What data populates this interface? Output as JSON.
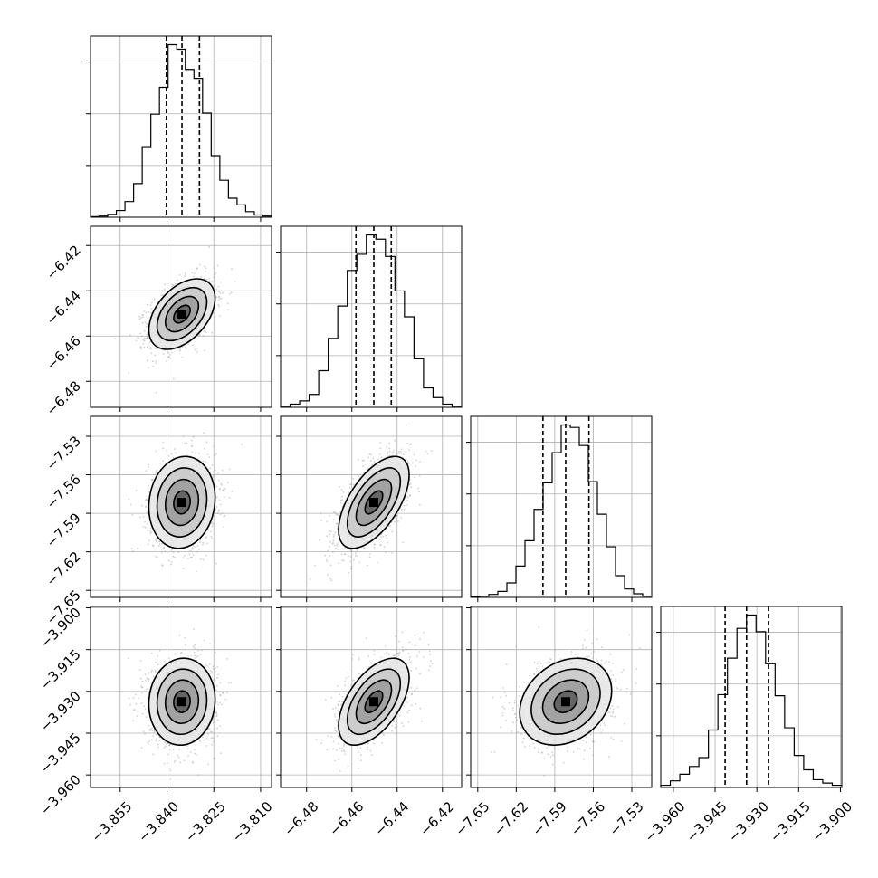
{
  "chart_data": {
    "type": "corner",
    "grid": true,
    "axes_frame_color": "#000000",
    "grid_color": "#b0b0b0",
    "variables": [
      {
        "ticks": [
          "−3.855",
          "−3.840",
          "−3.825",
          "−3.810"
        ],
        "tick_values": [
          -3.855,
          -3.84,
          -3.825,
          -3.81
        ],
        "range": [
          -3.8645,
          -3.8065
        ],
        "quantiles": [
          -3.8402,
          -3.8352,
          -3.8296
        ],
        "histogram": [
          0.5,
          1,
          2.5,
          6,
          14,
          30,
          63,
          92,
          116,
          154,
          150,
          132,
          124,
          93,
          55,
          33,
          17,
          11,
          5,
          2,
          1
        ]
      },
      {
        "ticks": [
          "−6.48",
          "−6.46",
          "−6.44",
          "−6.42"
        ],
        "tick_values": [
          -6.48,
          -6.46,
          -6.44,
          -6.42
        ],
        "range": [
          -6.4915,
          -6.4115
        ],
        "quantiles": [
          -6.4582,
          -6.4503,
          -6.4426
        ],
        "histogram": [
          1,
          3,
          6,
          12,
          34,
          64,
          94,
          127,
          142,
          160,
          156,
          140,
          108,
          84,
          45,
          18,
          9,
          3,
          1
        ]
      },
      {
        "ticks": [
          "−7.65",
          "−7.62",
          "−7.59",
          "−7.56",
          "−7.53"
        ],
        "tick_values": [
          -7.65,
          -7.62,
          -7.59,
          -7.56,
          -7.53
        ],
        "range": [
          -7.6555,
          -7.5145
        ],
        "quantiles": [
          -7.5992,
          -7.5815,
          -7.5634
        ],
        "histogram": [
          0.5,
          1,
          2.5,
          5,
          12,
          26,
          47,
          73,
          95,
          120,
          143,
          141,
          126,
          96,
          69,
          42,
          18,
          7,
          3,
          1
        ]
      },
      {
        "ticks": [
          "−3.960",
          "−3.945",
          "−3.930",
          "−3.915",
          "−3.900"
        ],
        "tick_values": [
          -3.96,
          -3.945,
          -3.93,
          -3.915,
          -3.9
        ],
        "range": [
          -3.9645,
          -3.8995
        ],
        "quantiles": [
          -3.9414,
          -3.9337,
          -3.9258
        ],
        "histogram": [
          2,
          6,
          12,
          19,
          27,
          52,
          84,
          117,
          144,
          156,
          141,
          112,
          83,
          54,
          29,
          16,
          7,
          4,
          2
        ]
      }
    ],
    "correlations": [
      [
        1,
        0.45,
        0.1,
        0.05
      ],
      [
        0.45,
        1,
        0.6,
        0.55
      ],
      [
        0.1,
        0.6,
        1,
        0.25
      ],
      [
        0.05,
        0.55,
        0.25,
        1
      ]
    ],
    "contour_sigma_levels": [
      0.5,
      1.0,
      1.5,
      2.0
    ]
  }
}
